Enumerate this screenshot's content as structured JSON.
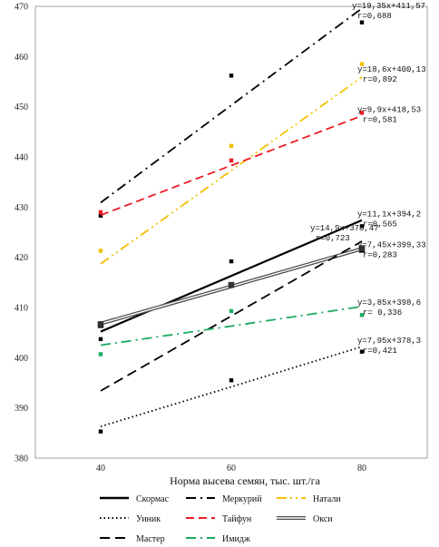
{
  "chart_data": {
    "type": "line",
    "title": "",
    "xlabel": "Норма высева семян, тыс. шт./га",
    "ylabel": "",
    "x": [
      40,
      60,
      80
    ],
    "x_ticks": [
      "40",
      "60",
      "80"
    ],
    "ylim": [
      380,
      470
    ],
    "y_ticks": [
      "380",
      "390",
      "400",
      "410",
      "420",
      "430",
      "440",
      "450",
      "460",
      "470"
    ],
    "grid": false,
    "legend_position": "bottom",
    "series": [
      {
        "name": "Скормас",
        "color": "#000000",
        "dash": "solid",
        "points": [
          406.5,
          414.5,
          421.5
        ],
        "trend": [
          405.2,
          416.3,
          427.4
        ],
        "eq": "y=11,1x+394,2",
        "r": "r=0,565"
      },
      {
        "name": "Меркурий",
        "color": "#000000",
        "dash": "dashdot",
        "points": [
          428.3,
          456.2,
          466.8
        ],
        "trend": [
          430.9,
          450.3,
          469.6
        ],
        "eq": "y=19,35x+411,57",
        "r": "r=0,688"
      },
      {
        "name": "Натали",
        "color": "#f5c000",
        "dash": "dashdotdot",
        "points": [
          421.3,
          442.2,
          458.5
        ],
        "trend": [
          418.7,
          437.3,
          455.9
        ],
        "eq": "y=18,6x+400,13",
        "r": "r=0,892"
      },
      {
        "name": "Уиник",
        "color": "#000000",
        "dash": "dotted",
        "points": [
          385.3,
          395.5,
          401.2
        ],
        "trend": [
          386.3,
          394.2,
          402.2
        ],
        "eq": "y=7,95x+378,3",
        "r": "r=0,421"
      },
      {
        "name": "Тайфун",
        "color": "#ee1c24",
        "dash": "dashed",
        "points": [
          429.0,
          439.3,
          448.8
        ],
        "trend": [
          428.4,
          438.3,
          448.2
        ],
        "eq": "y=9,9x+418,53",
        "r": "r=0,581"
      },
      {
        "name": "Окси",
        "color": "#7f7f7f",
        "dash": "double",
        "points": [
          406.7,
          414.5,
          421.8
        ],
        "trend": [
          406.8,
          414.2,
          421.7
        ],
        "eq": "y=7,45x+399,33",
        "r": "r=0,283"
      },
      {
        "name": "Мастер",
        "color": "#000000",
        "dash": "longdash",
        "points": [
          403.7,
          419.2,
          426.2
        ],
        "trend": [
          393.4,
          408.3,
          423.2
        ],
        "eq": "y=14,9x+378,47",
        "r": "r=0,723"
      },
      {
        "name": "Имидж",
        "color": "#1aab5f",
        "dash": "dashdot",
        "points": [
          400.7,
          409.3,
          408.5
        ],
        "trend": [
          402.5,
          406.3,
          410.2
        ],
        "eq": "y=3,85x+398,6",
        "r": "r= 0,336"
      }
    ]
  }
}
